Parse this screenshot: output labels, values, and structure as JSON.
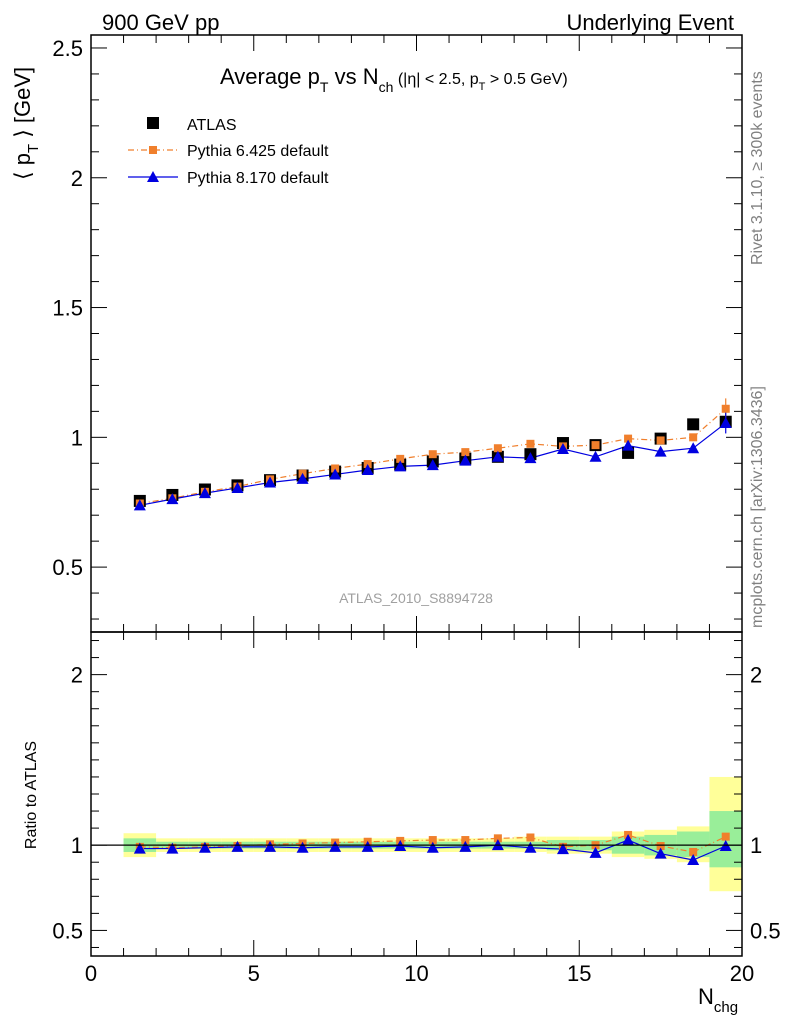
{
  "header": {
    "left": "900 GeV pp",
    "right": "Underlying Event"
  },
  "side": {
    "rivet": "Rivet 3.1.10, ≥ 300k events",
    "mcplots": "mcplots.cern.ch [arXiv:1306.3436]"
  },
  "chart_data": [
    {
      "type": "scatter",
      "title": "Average p_T vs N_ch (|η| < 2.5, p_T > 0.5 GeV)",
      "xlabel": "N_chg",
      "ylabel": "⟨ p_T ⟩ [GeV]",
      "xlim": [
        0,
        20
      ],
      "ylim": [
        0.25,
        2.55
      ],
      "yticks": [
        0.5,
        1,
        1.5,
        2,
        2.5
      ],
      "xticks": [
        0,
        5,
        10,
        15,
        20
      ],
      "watermark": "ATLAS_2010_S8894728",
      "x": [
        1.5,
        2.5,
        3.5,
        4.5,
        5.5,
        6.5,
        7.5,
        8.5,
        9.5,
        10.5,
        11.5,
        12.5,
        13.5,
        14.5,
        15.5,
        16.5,
        17.5,
        18.5,
        19.5
      ],
      "series": [
        {
          "name": "ATLAS",
          "color": "#000000",
          "marker": "square",
          "values": [
            0.755,
            0.778,
            0.799,
            0.815,
            0.835,
            0.853,
            0.868,
            0.882,
            0.895,
            0.907,
            0.918,
            0.925,
            0.935,
            0.978,
            0.97,
            0.94,
            0.995,
            1.05,
            1.06
          ]
        },
        {
          "name": "Pythia 6.425 default",
          "color": "#f07f2c",
          "marker": "square-small",
          "values": [
            0.745,
            0.765,
            0.79,
            0.81,
            0.838,
            0.86,
            0.88,
            0.897,
            0.917,
            0.935,
            0.943,
            0.958,
            0.975,
            0.965,
            0.97,
            0.995,
            0.988,
            1.0,
            1.11
          ]
        },
        {
          "name": "Pythia 8.170 default",
          "color": "#0000e0",
          "marker": "triangle",
          "values": [
            0.738,
            0.762,
            0.785,
            0.805,
            0.826,
            0.84,
            0.857,
            0.874,
            0.888,
            0.893,
            0.91,
            0.925,
            0.92,
            0.955,
            0.925,
            0.968,
            0.945,
            0.958,
            1.055
          ]
        }
      ]
    },
    {
      "type": "scatter",
      "ylabel": "Ratio to ATLAS",
      "xlabel": "N_chg",
      "xlim": [
        0,
        20
      ],
      "ylim": [
        0.35,
        2.25
      ],
      "yticks": [
        0.5,
        1,
        2
      ],
      "x": [
        1.5,
        2.5,
        3.5,
        4.5,
        5.5,
        6.5,
        7.5,
        8.5,
        9.5,
        10.5,
        11.5,
        12.5,
        13.5,
        14.5,
        15.5,
        16.5,
        17.5,
        18.5,
        19.5
      ],
      "band_yellow": [
        [
          0.93,
          1.07
        ],
        [
          0.96,
          1.04
        ],
        [
          0.96,
          1.04
        ],
        [
          0.96,
          1.04
        ],
        [
          0.96,
          1.04
        ],
        [
          0.96,
          1.04
        ],
        [
          0.96,
          1.04
        ],
        [
          0.96,
          1.04
        ],
        [
          0.96,
          1.04
        ],
        [
          0.96,
          1.04
        ],
        [
          0.96,
          1.04
        ],
        [
          0.96,
          1.04
        ],
        [
          0.96,
          1.05
        ],
        [
          0.95,
          1.05
        ],
        [
          0.95,
          1.05
        ],
        [
          0.93,
          1.08
        ],
        [
          0.92,
          1.09
        ],
        [
          0.9,
          1.11
        ],
        [
          0.73,
          1.4
        ]
      ],
      "band_green": [
        [
          0.96,
          1.04
        ],
        [
          0.98,
          1.02
        ],
        [
          0.98,
          1.02
        ],
        [
          0.98,
          1.02
        ],
        [
          0.98,
          1.02
        ],
        [
          0.98,
          1.02
        ],
        [
          0.98,
          1.02
        ],
        [
          0.98,
          1.02
        ],
        [
          0.98,
          1.02
        ],
        [
          0.98,
          1.02
        ],
        [
          0.98,
          1.02
        ],
        [
          0.98,
          1.02
        ],
        [
          0.98,
          1.02
        ],
        [
          0.97,
          1.03
        ],
        [
          0.97,
          1.03
        ],
        [
          0.95,
          1.05
        ],
        [
          0.94,
          1.06
        ],
        [
          0.93,
          1.08
        ],
        [
          0.87,
          1.2
        ]
      ],
      "series": [
        {
          "name": "Pythia 6.425 default",
          "color": "#f07f2c",
          "marker": "square-small",
          "values": [
            0.99,
            0.985,
            0.99,
            0.995,
            1.005,
            1.01,
            1.015,
            1.02,
            1.025,
            1.03,
            1.03,
            1.04,
            1.045,
            0.99,
            1.0,
            1.06,
            0.995,
            0.96,
            1.05
          ]
        },
        {
          "name": "Pythia 8.170 default",
          "color": "#0000e0",
          "marker": "triangle",
          "values": [
            0.98,
            0.98,
            0.985,
            0.99,
            0.99,
            0.985,
            0.99,
            0.99,
            0.995,
            0.985,
            0.99,
            1.0,
            0.985,
            0.977,
            0.955,
            1.03,
            0.95,
            0.913,
            0.995
          ]
        }
      ]
    }
  ]
}
